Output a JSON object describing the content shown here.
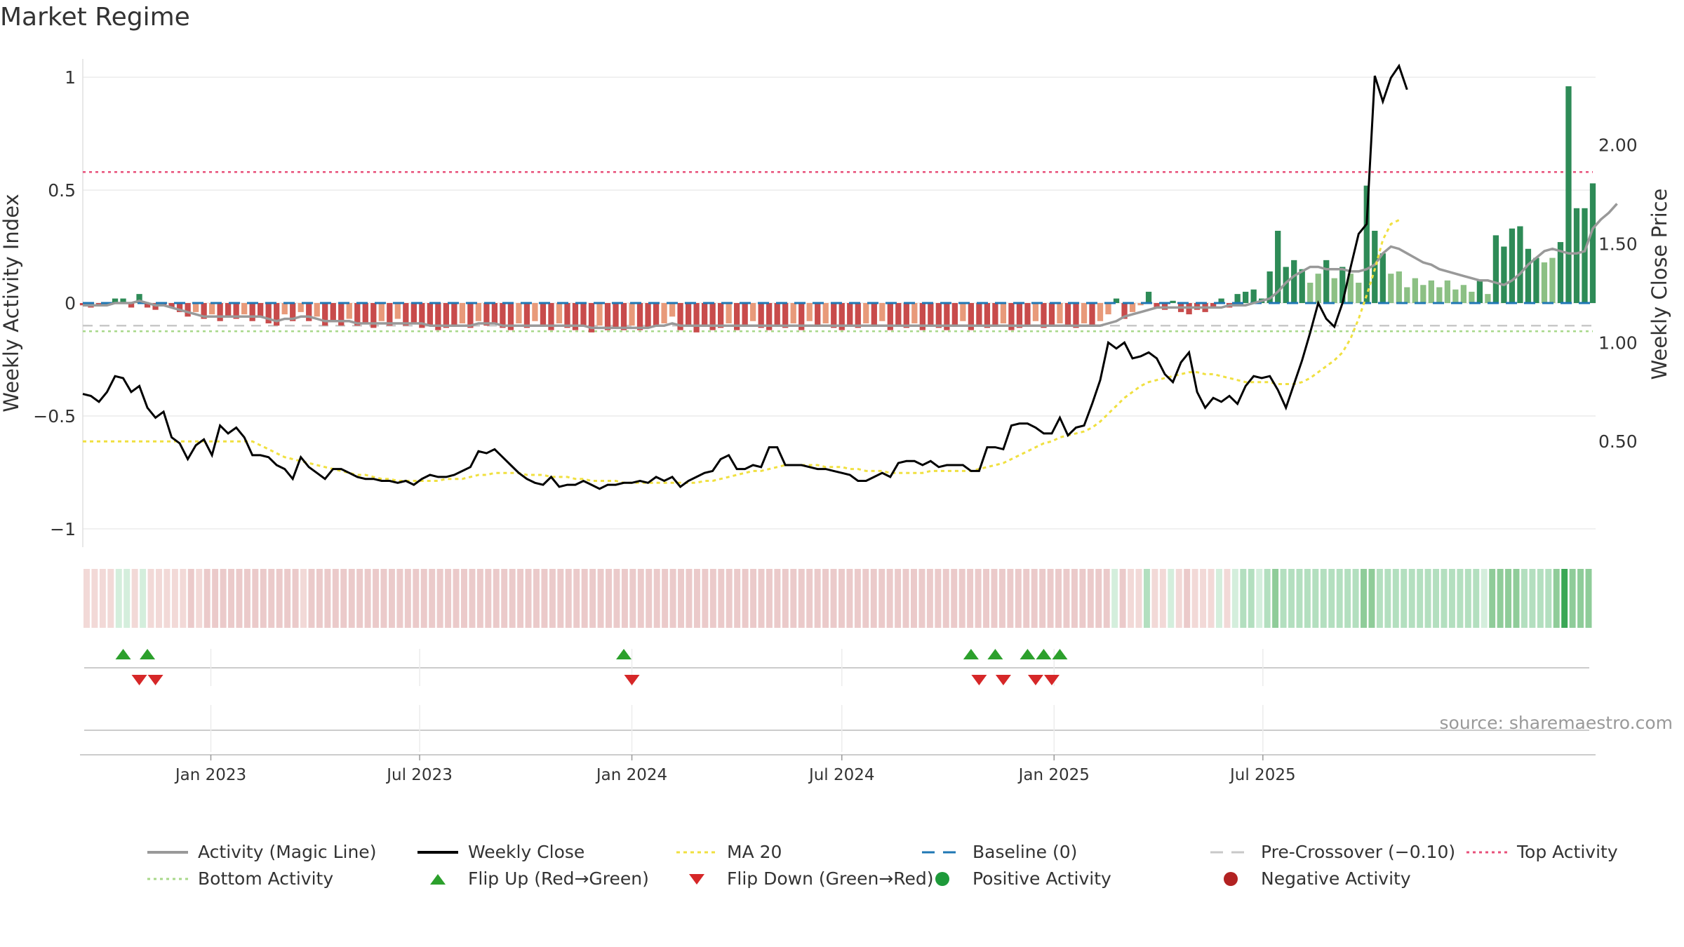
{
  "page": {
    "title": "Market Regime",
    "source": "source: sharemaestro.com"
  },
  "colors": {
    "pos_strong": "#2e8b57",
    "pos_light": "#8cc084",
    "neg_strong": "#c84b4b",
    "neg_light": "#e89a7a",
    "magic": "#999999",
    "close": "#000000",
    "ma": "#f0e040",
    "baseline": "#1f77b4",
    "pre": "#c8c8c8",
    "top": "#e8507a",
    "bottom": "#a8d88a",
    "flip_up": "#2ca02c",
    "flip_down": "#d62728"
  },
  "chart_data": {
    "type": "bar+line",
    "title": "Market Regime",
    "start_date": "2022-09-12",
    "interval_days": 7,
    "left_axis": {
      "label": "Weekly Activity Index",
      "ylim": [
        -1.05,
        1.05
      ],
      "ticks": [
        1,
        0.5,
        0,
        -0.5,
        -1
      ],
      "tick_labels": [
        "1",
        "0.5",
        "0",
        "−0.5",
        "−1"
      ]
    },
    "right_axis": {
      "label": "Weekly Close Price",
      "ylim": [
        0.0,
        2.4
      ],
      "ticks": [
        2.0,
        1.5,
        1.0,
        0.5
      ],
      "tick_labels": [
        "2.00",
        "1.50",
        "1.00",
        "0.50"
      ]
    },
    "x_ticks": [
      "Jan 2023",
      "Jul 2023",
      "Jan 2024",
      "Jul 2024",
      "Jan 2025",
      "Jul 2025"
    ],
    "x_tick_dates": [
      "2023-01-01",
      "2023-07-01",
      "2024-01-01",
      "2024-07-01",
      "2025-01-01",
      "2025-07-01"
    ],
    "reference_lines": {
      "baseline": 0,
      "pre_crossover": -0.1,
      "top_activity": 0.58,
      "bottom_activity": -0.125
    },
    "activity": [
      -0.01,
      -0.02,
      -0.01,
      -0.01,
      0.02,
      0.02,
      -0.02,
      0.04,
      -0.02,
      -0.03,
      -0.01,
      -0.02,
      -0.04,
      -0.06,
      -0.04,
      -0.07,
      -0.05,
      -0.08,
      -0.06,
      -0.07,
      -0.05,
      -0.08,
      -0.06,
      -0.09,
      -0.1,
      -0.05,
      -0.08,
      -0.04,
      -0.08,
      -0.06,
      -0.1,
      -0.08,
      -0.1,
      -0.07,
      -0.1,
      -0.09,
      -0.11,
      -0.08,
      -0.1,
      -0.07,
      -0.1,
      -0.09,
      -0.11,
      -0.1,
      -0.12,
      -0.11,
      -0.1,
      -0.09,
      -0.11,
      -0.08,
      -0.1,
      -0.09,
      -0.11,
      -0.12,
      -0.09,
      -0.11,
      -0.08,
      -0.1,
      -0.12,
      -0.09,
      -0.11,
      -0.12,
      -0.1,
      -0.13,
      -0.1,
      -0.12,
      -0.11,
      -0.12,
      -0.1,
      -0.12,
      -0.11,
      -0.1,
      -0.09,
      -0.06,
      -0.12,
      -0.1,
      -0.13,
      -0.1,
      -0.12,
      -0.11,
      -0.09,
      -0.12,
      -0.1,
      -0.08,
      -0.11,
      -0.12,
      -0.1,
      -0.11,
      -0.09,
      -0.12,
      -0.08,
      -0.1,
      -0.09,
      -0.11,
      -0.12,
      -0.1,
      -0.11,
      -0.09,
      -0.1,
      -0.08,
      -0.12,
      -0.1,
      -0.11,
      -0.09,
      -0.12,
      -0.1,
      -0.11,
      -0.12,
      -0.1,
      -0.08,
      -0.12,
      -0.1,
      -0.11,
      -0.1,
      -0.09,
      -0.12,
      -0.11,
      -0.1,
      -0.08,
      -0.11,
      -0.1,
      -0.09,
      -0.1,
      -0.11,
      -0.09,
      -0.1,
      -0.08,
      -0.05,
      0.02,
      -0.07,
      -0.04,
      -0.01,
      0.05,
      -0.02,
      -0.03,
      0.01,
      -0.04,
      -0.05,
      -0.03,
      -0.04,
      -0.02,
      0.02,
      -0.02,
      0.04,
      0.05,
      0.06,
      0.02,
      0.14,
      0.32,
      0.16,
      0.19,
      0.15,
      0.09,
      0.13,
      0.19,
      0.11,
      0.16,
      0.13,
      0.09,
      0.52,
      0.32,
      0.22,
      0.13,
      0.14,
      0.07,
      0.11,
      0.08,
      0.1,
      0.07,
      0.1,
      0.06,
      0.08,
      0.05,
      0.1,
      0.04,
      0.3,
      0.25,
      0.33,
      0.34,
      0.24,
      0.2,
      0.18,
      0.2,
      0.27,
      0.96,
      0.42,
      0.42,
      0.53
    ],
    "magic": [
      -0.01,
      -0.01,
      -0.01,
      -0.01,
      0.0,
      0.0,
      0.0,
      0.01,
      0.0,
      -0.01,
      -0.01,
      -0.02,
      -0.03,
      -0.04,
      -0.05,
      -0.06,
      -0.06,
      -0.06,
      -0.06,
      -0.06,
      -0.06,
      -0.06,
      -0.06,
      -0.07,
      -0.08,
      -0.07,
      -0.07,
      -0.06,
      -0.06,
      -0.07,
      -0.08,
      -0.08,
      -0.08,
      -0.08,
      -0.09,
      -0.09,
      -0.09,
      -0.09,
      -0.09,
      -0.09,
      -0.09,
      -0.09,
      -0.09,
      -0.1,
      -0.1,
      -0.1,
      -0.1,
      -0.1,
      -0.1,
      -0.09,
      -0.09,
      -0.09,
      -0.1,
      -0.1,
      -0.1,
      -0.1,
      -0.1,
      -0.1,
      -0.1,
      -0.1,
      -0.1,
      -0.1,
      -0.1,
      -0.11,
      -0.11,
      -0.11,
      -0.11,
      -0.11,
      -0.11,
      -0.11,
      -0.11,
      -0.1,
      -0.1,
      -0.09,
      -0.1,
      -0.1,
      -0.1,
      -0.1,
      -0.1,
      -0.1,
      -0.1,
      -0.1,
      -0.1,
      -0.1,
      -0.1,
      -0.1,
      -0.1,
      -0.1,
      -0.1,
      -0.1,
      -0.1,
      -0.1,
      -0.1,
      -0.1,
      -0.1,
      -0.1,
      -0.1,
      -0.1,
      -0.1,
      -0.1,
      -0.1,
      -0.1,
      -0.1,
      -0.1,
      -0.1,
      -0.1,
      -0.1,
      -0.1,
      -0.1,
      -0.1,
      -0.1,
      -0.1,
      -0.1,
      -0.1,
      -0.1,
      -0.1,
      -0.1,
      -0.1,
      -0.1,
      -0.1,
      -0.1,
      -0.1,
      -0.1,
      -0.1,
      -0.1,
      -0.1,
      -0.1,
      -0.09,
      -0.08,
      -0.06,
      -0.05,
      -0.04,
      -0.03,
      -0.02,
      -0.02,
      -0.02,
      -0.02,
      -0.02,
      -0.02,
      -0.02,
      -0.02,
      -0.02,
      -0.01,
      -0.01,
      -0.01,
      0.0,
      0.01,
      0.02,
      0.05,
      0.09,
      0.12,
      0.14,
      0.16,
      0.16,
      0.15,
      0.15,
      0.15,
      0.14,
      0.14,
      0.15,
      0.17,
      0.22,
      0.25,
      0.24,
      0.22,
      0.2,
      0.18,
      0.17,
      0.15,
      0.14,
      0.13,
      0.12,
      0.11,
      0.1,
      0.1,
      0.09,
      0.08,
      0.1,
      0.13,
      0.17,
      0.2,
      0.23,
      0.24,
      0.23,
      0.22,
      0.22,
      0.23,
      0.33,
      0.37,
      0.4,
      0.44
    ],
    "close": [
      0.74,
      0.73,
      0.7,
      0.75,
      0.83,
      0.82,
      0.75,
      0.78,
      0.67,
      0.62,
      0.65,
      0.52,
      0.49,
      0.41,
      0.48,
      0.51,
      0.43,
      0.58,
      0.54,
      0.57,
      0.52,
      0.43,
      0.43,
      0.42,
      0.38,
      0.36,
      0.31,
      0.42,
      0.37,
      0.34,
      0.31,
      0.36,
      0.36,
      0.34,
      0.32,
      0.31,
      0.31,
      0.3,
      0.3,
      0.29,
      0.3,
      0.28,
      0.31,
      0.33,
      0.32,
      0.32,
      0.33,
      0.35,
      0.37,
      0.45,
      0.44,
      0.46,
      0.42,
      0.38,
      0.34,
      0.31,
      0.29,
      0.28,
      0.32,
      0.27,
      0.28,
      0.28,
      0.3,
      0.28,
      0.26,
      0.28,
      0.28,
      0.29,
      0.29,
      0.3,
      0.29,
      0.32,
      0.3,
      0.32,
      0.27,
      0.3,
      0.32,
      0.34,
      0.35,
      0.41,
      0.43,
      0.36,
      0.36,
      0.38,
      0.37,
      0.47,
      0.47,
      0.38,
      0.38,
      0.38,
      0.37,
      0.36,
      0.36,
      0.35,
      0.34,
      0.33,
      0.3,
      0.3,
      0.32,
      0.34,
      0.32,
      0.39,
      0.4,
      0.4,
      0.38,
      0.4,
      0.37,
      0.38,
      0.38,
      0.38,
      0.35,
      0.35,
      0.47,
      0.47,
      0.46,
      0.58,
      0.59,
      0.59,
      0.57,
      0.54,
      0.54,
      0.62,
      0.53,
      0.57,
      0.58,
      0.69,
      0.81,
      1.0,
      0.97,
      1.0,
      0.92,
      0.93,
      0.95,
      0.92,
      0.84,
      0.8,
      0.9,
      0.95,
      0.75,
      0.67,
      0.72,
      0.7,
      0.73,
      0.69,
      0.78,
      0.83,
      0.82,
      0.83,
      0.76,
      0.67,
      0.79,
      0.91,
      1.05,
      1.2,
      1.12,
      1.08,
      1.2,
      1.38,
      1.55,
      1.6,
      2.35,
      2.22,
      2.34,
      2.4,
      2.28
    ],
    "ma20": [
      0.5,
      0.5,
      0.5,
      0.5,
      0.5,
      0.5,
      0.5,
      0.5,
      0.5,
      0.5,
      0.5,
      0.5,
      0.5,
      0.5,
      0.5,
      0.5,
      0.5,
      0.5,
      0.5,
      0.5,
      0.5,
      0.5,
      0.48,
      0.46,
      0.44,
      0.42,
      0.41,
      0.4,
      0.39,
      0.38,
      0.37,
      0.36,
      0.35,
      0.34,
      0.33,
      0.33,
      0.32,
      0.31,
      0.31,
      0.3,
      0.3,
      0.3,
      0.3,
      0.3,
      0.3,
      0.31,
      0.31,
      0.31,
      0.32,
      0.33,
      0.33,
      0.34,
      0.34,
      0.34,
      0.34,
      0.33,
      0.33,
      0.33,
      0.32,
      0.32,
      0.32,
      0.31,
      0.31,
      0.3,
      0.3,
      0.3,
      0.3,
      0.29,
      0.29,
      0.29,
      0.29,
      0.29,
      0.29,
      0.29,
      0.29,
      0.29,
      0.29,
      0.3,
      0.3,
      0.31,
      0.32,
      0.33,
      0.34,
      0.35,
      0.35,
      0.36,
      0.37,
      0.38,
      0.38,
      0.38,
      0.38,
      0.38,
      0.37,
      0.37,
      0.37,
      0.36,
      0.36,
      0.35,
      0.35,
      0.35,
      0.34,
      0.34,
      0.34,
      0.34,
      0.34,
      0.35,
      0.35,
      0.35,
      0.35,
      0.35,
      0.35,
      0.36,
      0.37,
      0.38,
      0.39,
      0.41,
      0.43,
      0.45,
      0.47,
      0.49,
      0.5,
      0.52,
      0.53,
      0.54,
      0.55,
      0.57,
      0.6,
      0.64,
      0.68,
      0.72,
      0.75,
      0.78,
      0.8,
      0.81,
      0.82,
      0.83,
      0.84,
      0.85,
      0.85,
      0.84,
      0.84,
      0.83,
      0.82,
      0.81,
      0.8,
      0.8,
      0.8,
      0.8,
      0.79,
      0.79,
      0.79,
      0.8,
      0.82,
      0.85,
      0.88,
      0.91,
      0.95,
      1.02,
      1.12,
      1.24,
      1.37,
      1.52,
      1.6,
      1.62
    ],
    "flips_up": [
      "2022-10-17",
      "2022-11-07",
      "2023-12-25",
      "2024-10-21",
      "2024-11-11",
      "2024-12-09",
      "2024-12-23",
      "2025-01-06"
    ],
    "flips_down": [
      "2022-10-31",
      "2022-11-14",
      "2024-01-01",
      "2024-10-28",
      "2024-11-18",
      "2024-12-16",
      "2024-12-30"
    ],
    "legend": [
      "Activity (Magic Line)",
      "Weekly Close",
      "MA 20",
      "Baseline (0)",
      "Pre-Crossover (−0.10)",
      "Top Activity",
      "Bottom Activity",
      "Flip Up (Red→Green)",
      "Flip Down (Green→Red)",
      "Positive Activity",
      "Negative Activity"
    ]
  }
}
